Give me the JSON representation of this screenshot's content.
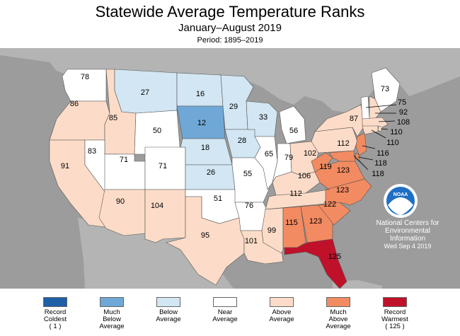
{
  "header": {
    "title": "Statewide Average Temperature Ranks",
    "subtitle": "January–August 2019",
    "period": "Period: 1895–2019"
  },
  "colors": {
    "record_coldest": "#1f5fa8",
    "much_below": "#6fa8d6",
    "below": "#d2e6f3",
    "near": "#ffffff",
    "above": "#fcdcc8",
    "much_above": "#f28b61",
    "record_warmest": "#c0112b",
    "background": "#9c9c9c"
  },
  "credit": {
    "logo_text": "NOAA",
    "line1": "National Centers for",
    "line2": "Environmental",
    "line3": "Information",
    "date": "Wed Sep  4 2019"
  },
  "legend": [
    {
      "lines": [
        "Record",
        "Coldest",
        "( 1 )"
      ],
      "color_key": "record_coldest"
    },
    {
      "lines": [
        "Much",
        "Below",
        "Average"
      ],
      "color_key": "much_below"
    },
    {
      "lines": [
        "Below",
        "Average"
      ],
      "color_key": "below"
    },
    {
      "lines": [
        "Near",
        "Average"
      ],
      "color_key": "near"
    },
    {
      "lines": [
        "Above",
        "Average"
      ],
      "color_key": "above"
    },
    {
      "lines": [
        "Much",
        "Above",
        "Average"
      ],
      "color_key": "much_above"
    },
    {
      "lines": [
        "Record",
        "Warmest",
        "( 125 )"
      ],
      "color_key": "record_warmest"
    }
  ],
  "states": [
    {
      "id": "WA",
      "rank": "78",
      "category": "near"
    },
    {
      "id": "OR",
      "rank": "86",
      "category": "above"
    },
    {
      "id": "ID",
      "rank": "85",
      "category": "above"
    },
    {
      "id": "MT",
      "rank": "27",
      "category": "below"
    },
    {
      "id": "WY",
      "rank": "50",
      "category": "near"
    },
    {
      "id": "CA",
      "rank": "91",
      "category": "above"
    },
    {
      "id": "NV",
      "rank": "83",
      "category": "near"
    },
    {
      "id": "UT",
      "rank": "71",
      "category": "near"
    },
    {
      "id": "CO",
      "rank": "71",
      "category": "near"
    },
    {
      "id": "AZ",
      "rank": "90",
      "category": "above"
    },
    {
      "id": "NM",
      "rank": "104",
      "category": "above"
    },
    {
      "id": "ND",
      "rank": "16",
      "category": "below"
    },
    {
      "id": "SD",
      "rank": "12",
      "category": "much_below"
    },
    {
      "id": "NE",
      "rank": "18",
      "category": "below"
    },
    {
      "id": "KS",
      "rank": "26",
      "category": "below"
    },
    {
      "id": "OK",
      "rank": "51",
      "category": "near"
    },
    {
      "id": "TX",
      "rank": "95",
      "category": "above"
    },
    {
      "id": "MN",
      "rank": "29",
      "category": "below"
    },
    {
      "id": "IA",
      "rank": "28",
      "category": "below"
    },
    {
      "id": "MO",
      "rank": "55",
      "category": "near"
    },
    {
      "id": "AR",
      "rank": "76",
      "category": "near"
    },
    {
      "id": "LA",
      "rank": "101",
      "category": "above"
    },
    {
      "id": "WI",
      "rank": "33",
      "category": "below"
    },
    {
      "id": "IL",
      "rank": "65",
      "category": "near"
    },
    {
      "id": "MI",
      "rank": "56",
      "category": "near"
    },
    {
      "id": "IN",
      "rank": "79",
      "category": "near"
    },
    {
      "id": "OH",
      "rank": "102",
      "category": "above"
    },
    {
      "id": "KY",
      "rank": "106",
      "category": "above"
    },
    {
      "id": "TN",
      "rank": "112",
      "category": "above"
    },
    {
      "id": "MS",
      "rank": "99",
      "category": "above"
    },
    {
      "id": "AL",
      "rank": "115",
      "category": "much_above"
    },
    {
      "id": "GA",
      "rank": "123",
      "category": "much_above"
    },
    {
      "id": "FL",
      "rank": "125",
      "category": "record_warmest"
    },
    {
      "id": "SC",
      "rank": "122",
      "category": "much_above"
    },
    {
      "id": "NC",
      "rank": "123",
      "category": "much_above"
    },
    {
      "id": "VA",
      "rank": "123",
      "category": "much_above"
    },
    {
      "id": "WV",
      "rank": "119",
      "category": "much_above"
    },
    {
      "id": "PA",
      "rank": "112",
      "category": "above"
    },
    {
      "id": "NY",
      "rank": "87",
      "category": "above"
    },
    {
      "id": "ME",
      "rank": "73",
      "category": "near"
    },
    {
      "id": "VT",
      "rank": "75",
      "category": "near"
    },
    {
      "id": "NH",
      "rank": "92",
      "category": "above"
    },
    {
      "id": "MA",
      "rank": "108",
      "category": "above"
    },
    {
      "id": "RI",
      "rank": "110",
      "category": "above"
    },
    {
      "id": "CT",
      "rank": "110",
      "category": "above"
    },
    {
      "id": "NJ",
      "rank": "116",
      "category": "much_above"
    },
    {
      "id": "DE",
      "rank": "118",
      "category": "much_above"
    },
    {
      "id": "MD",
      "rank": "118",
      "category": "much_above"
    }
  ]
}
